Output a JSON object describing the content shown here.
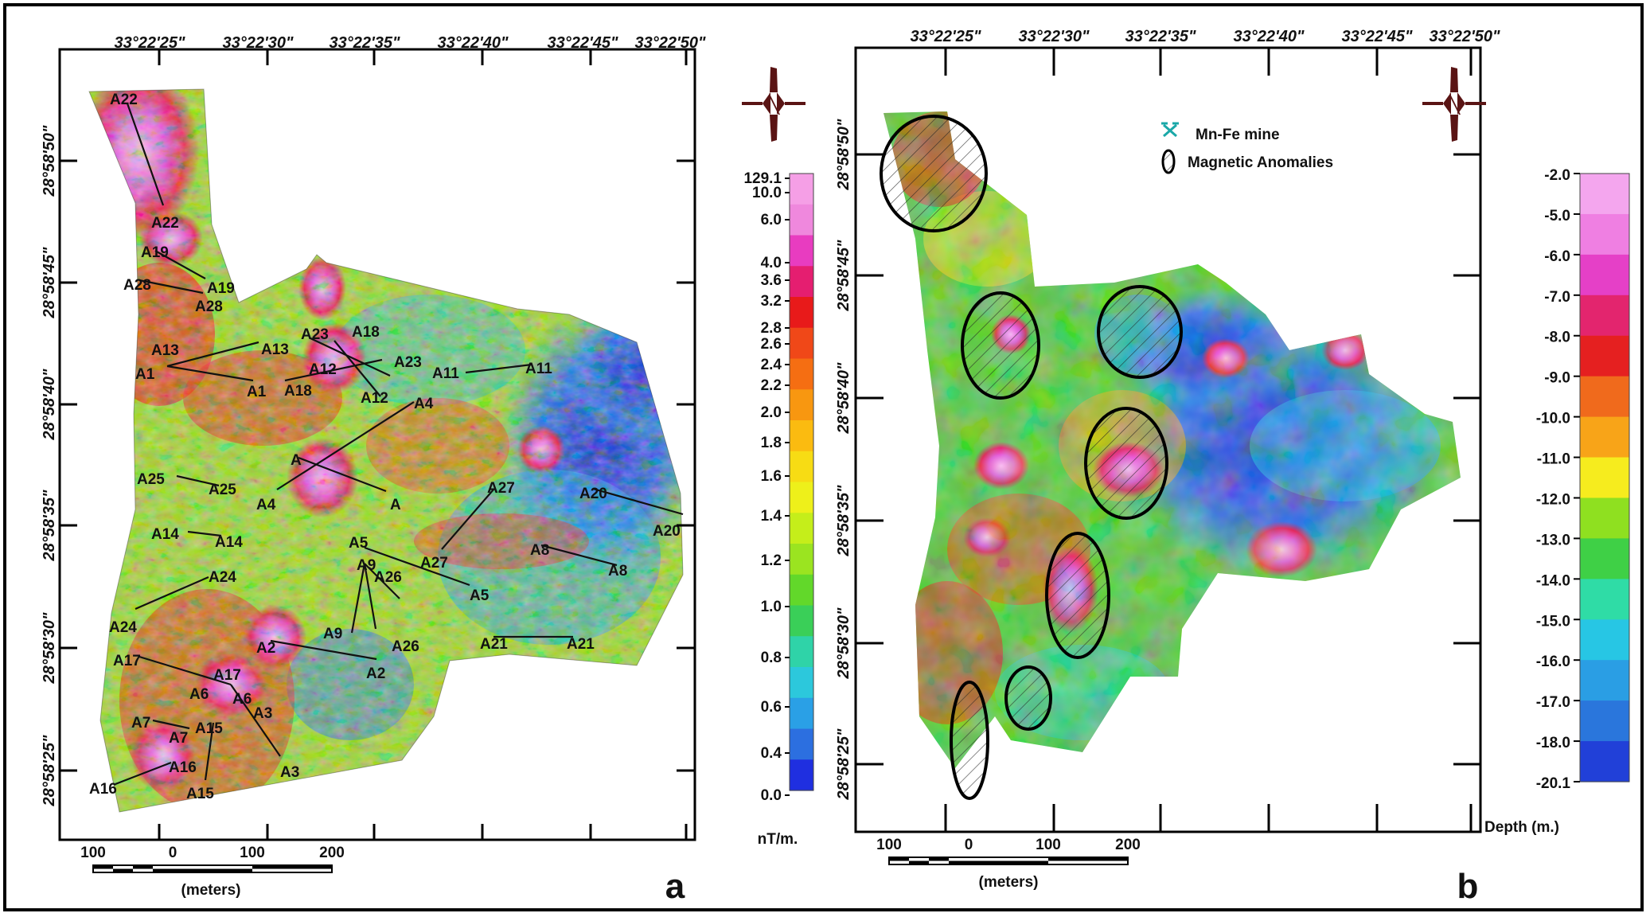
{
  "panel_a": {
    "letter": "a",
    "lon_labels": [
      "33°22'25\"",
      "33°22'30\"",
      "33°22'35\"",
      "33°22'40\"",
      "33°22'45\"",
      "33°22'50\""
    ],
    "lat_labels": [
      "28°58'50\"",
      "28°58'45\"",
      "28°58'40\"",
      "28°58'35\"",
      "28°58'30\"",
      "28°58'25\""
    ],
    "scale_labels": [
      "100",
      "0",
      "100",
      "200"
    ],
    "scale_unit": "(meters)",
    "colorbar_unit": "nT/m.",
    "colorbar_ticks": [
      "129.1",
      "10.0",
      "6.0",
      "4.0",
      "3.6",
      "3.2",
      "2.8",
      "2.6",
      "2.4",
      "2.2",
      "2.0",
      "1.8",
      "1.6",
      "1.4",
      "1.2",
      "1.0",
      "0.8",
      "0.6",
      "0.4",
      "0.0"
    ],
    "profile_labels": [
      "A22",
      "A22",
      "A19",
      "A19",
      "A28",
      "A28",
      "A13",
      "A13",
      "A1",
      "A1",
      "A23",
      "A18",
      "A23",
      "A18",
      "A12",
      "A12",
      "A4",
      "A4",
      "A11",
      "A11",
      "A",
      "A",
      "A25",
      "A25",
      "A27",
      "A27",
      "A20",
      "A20",
      "A14",
      "A14",
      "A5",
      "A5",
      "A9",
      "A9",
      "A26",
      "A26",
      "A8",
      "A8",
      "A24",
      "A24",
      "A2",
      "A2",
      "A21",
      "A21",
      "A17",
      "A17",
      "A6",
      "A6",
      "A3",
      "A3",
      "A7",
      "A7",
      "A15",
      "A15",
      "A16",
      "A16"
    ]
  },
  "panel_b": {
    "letter": "b",
    "lon_labels": [
      "33°22'25\"",
      "33°22'30\"",
      "33°22'35\"",
      "33°22'40\"",
      "33°22'45\"",
      "33°22'50\""
    ],
    "lat_labels": [
      "28°58'50\"",
      "28°58'45\"",
      "28°58'40\"",
      "28°58'35\"",
      "28°58'30\"",
      "28°58'25\""
    ],
    "scale_labels": [
      "100",
      "0",
      "100",
      "200"
    ],
    "scale_unit": "(meters)",
    "legend_mine": "Mn-Fe mine",
    "legend_anomalies": "Magnetic Anomalies",
    "colorbar_unit": "Depth (m.)",
    "colorbar_ticks": [
      "-2.0",
      "-5.0",
      "-6.0",
      "-7.0",
      "-8.0",
      "-9.0",
      "-10.0",
      "-11.0",
      "-12.0",
      "-13.0",
      "-14.0",
      "-15.0",
      "-16.0",
      "-17.0",
      "-18.0",
      "-20.1"
    ]
  },
  "colors": {
    "colorbar_a": [
      "#f59fe6",
      "#ef88dd",
      "#e83cc0",
      "#e51e70",
      "#e81a1a",
      "#f04818",
      "#f56e12",
      "#f89710",
      "#fbbb10",
      "#f7dc14",
      "#eef01a",
      "#c5ee1a",
      "#9be420",
      "#62d82a",
      "#3acf58",
      "#2fd3a8",
      "#2cc8dc",
      "#2aa0e6",
      "#2c6fe0",
      "#1f2fe0"
    ],
    "colorbar_b": [
      "#f4a6ee",
      "#ef7fe2",
      "#e540c7",
      "#e3256e",
      "#e52020",
      "#f06a1c",
      "#f8a418",
      "#f6ec1e",
      "#8fe020",
      "#3fd046",
      "#2fdca6",
      "#27c6e4",
      "#2a9ee4",
      "#2a76dc",
      "#2140d8"
    ]
  }
}
